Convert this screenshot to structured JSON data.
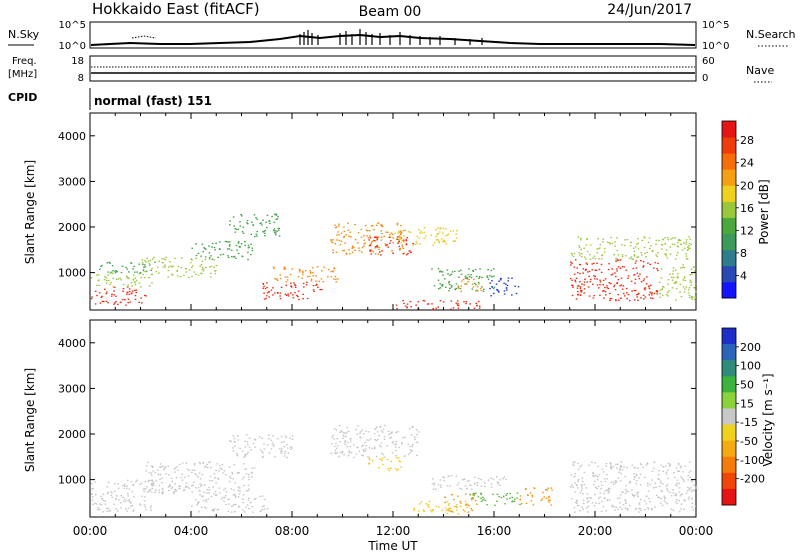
{
  "header": {
    "radar": "Hokkaido East (fitACF)",
    "beam": "Beam 00",
    "date": "24/Jun/2017"
  },
  "nsky_panel": {
    "left_label": "N.Sky",
    "right_label": "N.Search",
    "left_ticks": [
      "10^5",
      "10^0"
    ],
    "right_ticks": [
      "10^5",
      "10^0"
    ]
  },
  "freq_panel": {
    "left_label_line1": "Freq.",
    "left_label_line2": "[MHz]",
    "left_ticks": [
      "18",
      "8"
    ],
    "right_label": "Nave",
    "right_ticks": [
      "60",
      "0"
    ]
  },
  "cpid_panel": {
    "label": "CPID",
    "text": "normal (fast) 151"
  },
  "chart_data": [
    {
      "type": "heatmap",
      "name": "power",
      "ylabel": "Slant Range [km]",
      "yticks": [
        1000,
        2000,
        3000,
        4000
      ],
      "ylim": [
        180,
        4500
      ],
      "xlim_hours": [
        0,
        24
      ],
      "colorbar_label": "Power [dB]",
      "colorbar_ticks": [
        "4",
        "8",
        "12",
        "16",
        "20",
        "24",
        "28"
      ],
      "colorbar_colors": [
        "#1414ff",
        "#2848b4",
        "#2e7d8c",
        "#3c9a5a",
        "#4ba83c",
        "#9ac83c",
        "#f0d21e",
        "#f5a014",
        "#f56e0a",
        "#f03c0a",
        "#e61414"
      ],
      "color_key": {
        "blue": "#1e3cc8",
        "teal": "#2e8c78",
        "green": "#46a046",
        "lightgreen": "#9cc83c",
        "yellow": "#e6c81e",
        "orange": "#f08c14",
        "red": "#ee2a10"
      },
      "echo_regions": [
        {
          "hours": [
            0.0,
            2.2
          ],
          "range_km": [
            300,
            700
          ],
          "color": "red"
        },
        {
          "hours": [
            0.0,
            2.5
          ],
          "range_km": [
            700,
            1000
          ],
          "color": "lightgreen"
        },
        {
          "hours": [
            0.3,
            2.6
          ],
          "range_km": [
            1000,
            1250
          ],
          "color": "green"
        },
        {
          "hours": [
            2.0,
            5.0
          ],
          "range_km": [
            900,
            1350
          ],
          "color": "lightgreen"
        },
        {
          "hours": [
            4.0,
            6.5
          ],
          "range_km": [
            1300,
            1700
          ],
          "color": "green"
        },
        {
          "hours": [
            5.5,
            7.5
          ],
          "range_km": [
            1800,
            2300
          ],
          "color": "green"
        },
        {
          "hours": [
            6.8,
            9.2
          ],
          "range_km": [
            400,
            800
          ],
          "color": "red"
        },
        {
          "hours": [
            7.2,
            9.8
          ],
          "range_km": [
            800,
            1150
          ],
          "color": "orange"
        },
        {
          "hours": [
            9.5,
            12.5
          ],
          "range_km": [
            1400,
            2100
          ],
          "color": "orange"
        },
        {
          "hours": [
            11.0,
            12.8
          ],
          "range_km": [
            1400,
            1800
          ],
          "color": "red"
        },
        {
          "hours": [
            12.0,
            14.5
          ],
          "range_km": [
            1600,
            2000
          ],
          "color": "yellow"
        },
        {
          "hours": [
            13.5,
            16.0
          ],
          "range_km": [
            600,
            1100
          ],
          "color": "green"
        },
        {
          "hours": [
            14.5,
            15.5
          ],
          "range_km": [
            600,
            900
          ],
          "color": "orange"
        },
        {
          "hours": [
            12.0,
            15.5
          ],
          "range_km": [
            200,
            400
          ],
          "color": "red"
        },
        {
          "hours": [
            15.8,
            17.0
          ],
          "range_km": [
            500,
            900
          ],
          "color": "blue"
        },
        {
          "hours": [
            19.0,
            22.5
          ],
          "range_km": [
            400,
            1300
          ],
          "color": "red"
        },
        {
          "hours": [
            19.0,
            23.8
          ],
          "range_km": [
            1300,
            1800
          ],
          "color": "lightgreen"
        },
        {
          "hours": [
            22.5,
            24.0
          ],
          "range_km": [
            400,
            1200
          ],
          "color": "lightgreen"
        }
      ]
    },
    {
      "type": "heatmap",
      "name": "velocity",
      "ylabel": "Slant Range [km]",
      "yticks": [
        1000,
        2000,
        3000,
        4000
      ],
      "ylim": [
        180,
        4500
      ],
      "xlim_hours": [
        0,
        24
      ],
      "xticks": [
        "00:00",
        "04:00",
        "08:00",
        "12:00",
        "16:00",
        "20:00",
        "00:00"
      ],
      "xlabel": "Time UT",
      "colorbar_label": "Velocity [m s⁻¹]",
      "colorbar_ticks": [
        "200",
        "100",
        "50",
        "15",
        "-15",
        "-50",
        "-100",
        "-200"
      ],
      "colorbar_colors": [
        "#1e2ec8",
        "#2a66b8",
        "#2e8c78",
        "#3cb43c",
        "#8cd23c",
        "#c8c8c8",
        "#f0d21e",
        "#f5aa14",
        "#f57c0a",
        "#f0460a",
        "#e61414"
      ],
      "color_key": {
        "gray": "#c4c4c0",
        "yellow": "#f0c81e",
        "orange": "#f59614",
        "green": "#5ab43c",
        "lightgreen": "#9cd23c",
        "red": "#e61414"
      },
      "echo_regions": [
        {
          "hours": [
            0.0,
            2.5
          ],
          "range_km": [
            300,
            1000
          ],
          "color": "gray"
        },
        {
          "hours": [
            2.0,
            6.5
          ],
          "range_km": [
            700,
            1400
          ],
          "color": "gray"
        },
        {
          "hours": [
            4.0,
            7.0
          ],
          "range_km": [
            300,
            700
          ],
          "color": "gray"
        },
        {
          "hours": [
            5.5,
            8.0
          ],
          "range_km": [
            1500,
            2000
          ],
          "color": "gray"
        },
        {
          "hours": [
            9.5,
            13.0
          ],
          "range_km": [
            1500,
            2200
          ],
          "color": "gray"
        },
        {
          "hours": [
            11.0,
            12.3
          ],
          "range_km": [
            1200,
            1500
          ],
          "color": "yellow"
        },
        {
          "hours": [
            12.8,
            15.0
          ],
          "range_km": [
            250,
            550
          ],
          "color": "yellow"
        },
        {
          "hours": [
            14.0,
            15.3
          ],
          "range_km": [
            300,
            700
          ],
          "color": "orange"
        },
        {
          "hours": [
            15.0,
            17.0
          ],
          "range_km": [
            450,
            750
          ],
          "color": "green"
        },
        {
          "hours": [
            17.0,
            18.3
          ],
          "range_km": [
            450,
            850
          ],
          "color": "orange"
        },
        {
          "hours": [
            19.0,
            24.0
          ],
          "range_km": [
            300,
            1400
          ],
          "color": "gray"
        },
        {
          "hours": [
            13.5,
            16.5
          ],
          "range_km": [
            800,
            1100
          ],
          "color": "gray"
        }
      ]
    }
  ]
}
